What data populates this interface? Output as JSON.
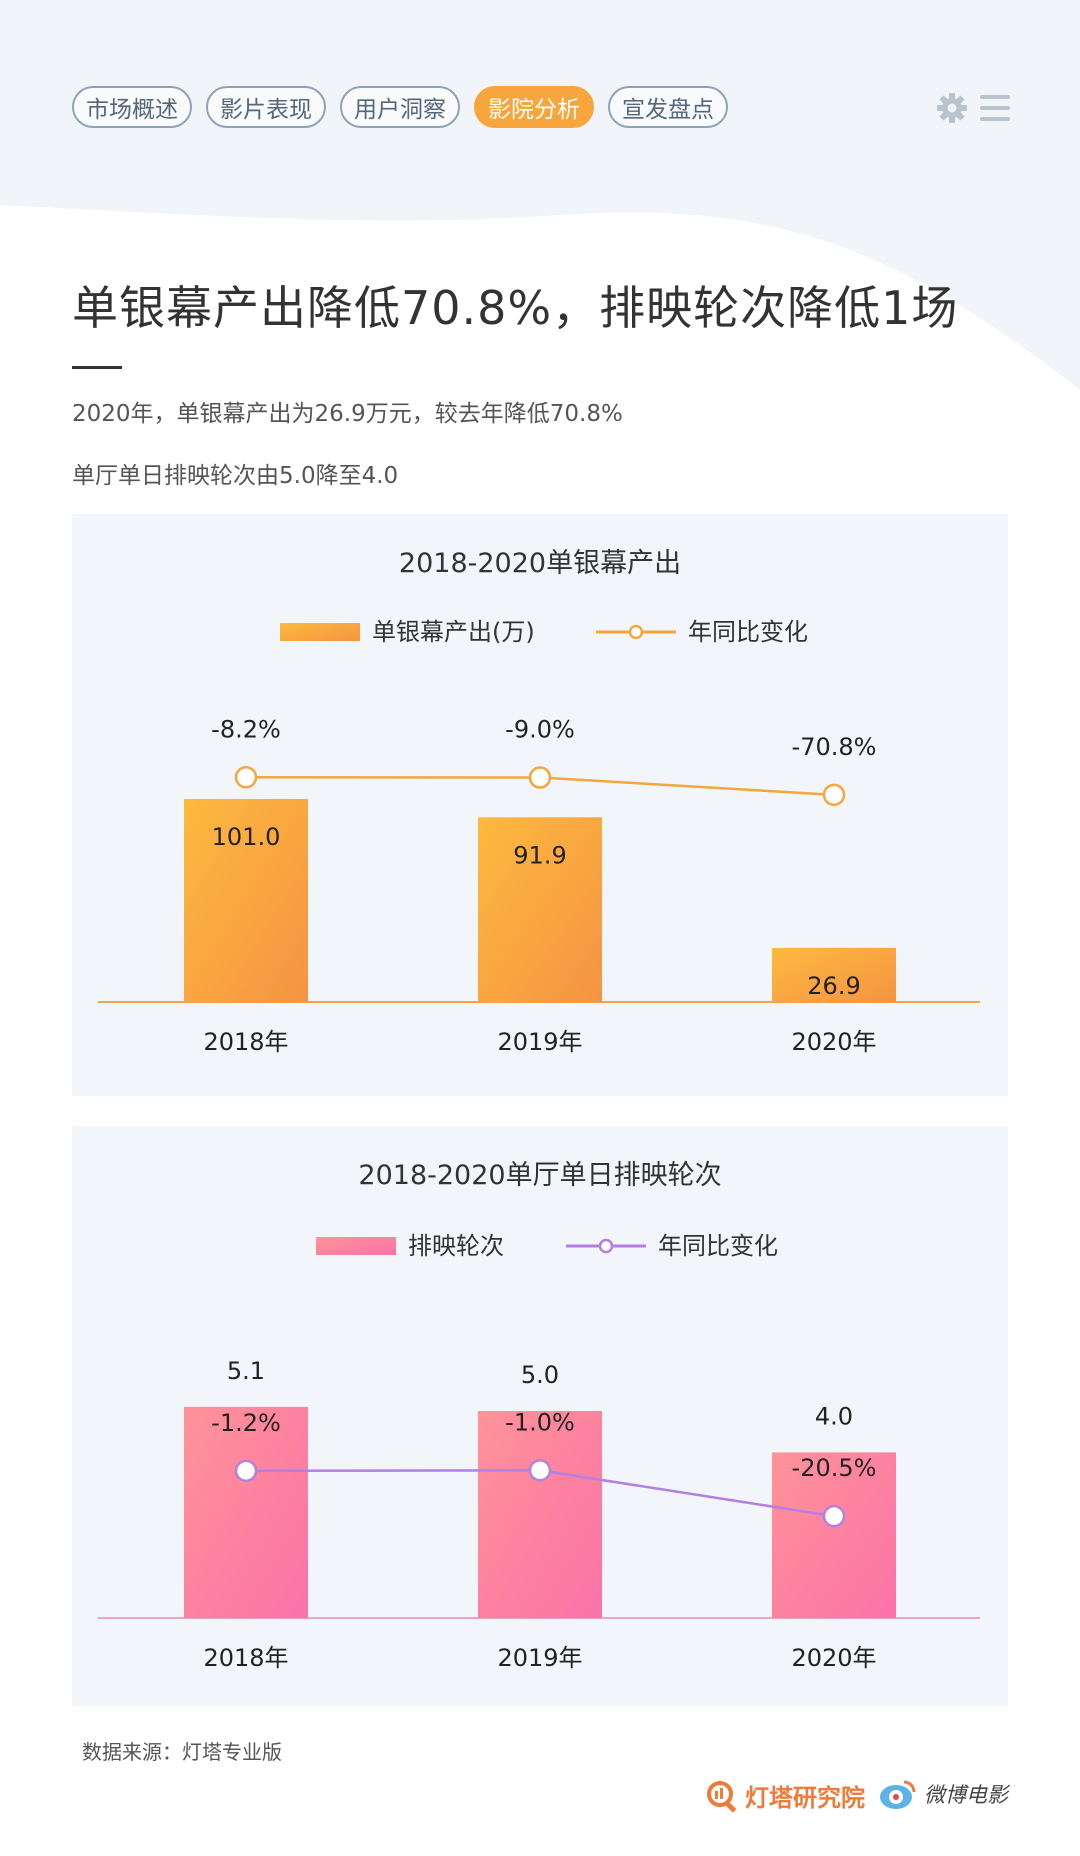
{
  "tabs": [
    "市场概述",
    "影片表现",
    "用户洞察",
    "影院分析",
    "宣发盘点"
  ],
  "active_tab_index": 3,
  "title": "单银幕产出降低70.8%，排映轮次降低1场",
  "subtitle1": "2020年，单银幕产出为26.9万元，较去年降低70.8%",
  "subtitle2": "单厅单日排映轮次由5.0降至4.0",
  "chart_data": [
    {
      "type": "bar",
      "title": "2018-2020单银幕产出",
      "categories": [
        "2018年",
        "2019年",
        "2020年"
      ],
      "series": [
        {
          "name": "单银幕产出(万)",
          "type": "bar",
          "values": [
            101.0,
            91.9,
            26.9
          ],
          "labels": [
            "101.0",
            "91.9",
            "26.9"
          ],
          "color": "#f7a53c"
        },
        {
          "name": "年同比变化",
          "type": "line",
          "values": [
            -8.2,
            -9.0,
            -70.8
          ],
          "labels": [
            "-8.2%",
            "-9.0%",
            "-70.8%"
          ],
          "color": "#f7a53c"
        }
      ]
    },
    {
      "type": "bar",
      "title": "2018-2020单厅单日排映轮次",
      "categories": [
        "2018年",
        "2019年",
        "2020年"
      ],
      "series": [
        {
          "name": "排映轮次",
          "type": "bar",
          "values": [
            5.1,
            5.0,
            4.0
          ],
          "labels": [
            "5.1",
            "5.0",
            "4.0"
          ],
          "color": "#fb7a9e"
        },
        {
          "name": "年同比变化",
          "type": "line",
          "values": [
            -1.2,
            -1.0,
            -20.5
          ],
          "labels": [
            "-1.2%",
            "-1.0%",
            "-20.5%"
          ],
          "color": "#b47fe0"
        }
      ]
    }
  ],
  "footer": {
    "source": "数据来源：灯塔专业版",
    "brand1": "灯塔研究院",
    "brand2": "微博电影"
  },
  "icons": [
    "gear-icon",
    "menu-icon",
    "dengta-logo-icon",
    "weibo-logo-icon"
  ]
}
